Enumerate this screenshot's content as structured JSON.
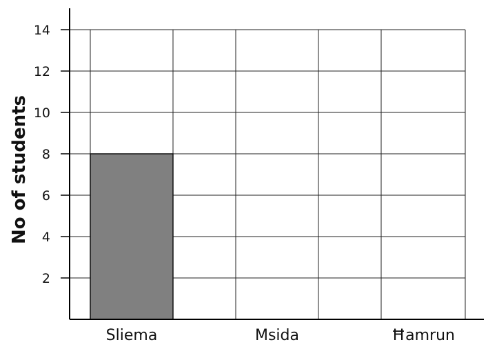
{
  "chart_data": {
    "type": "bar",
    "ylabel": "No of students",
    "xlabel": "",
    "title": "",
    "categories": [
      "Sliema",
      "Msida",
      "Ħamrun"
    ],
    "values": [
      8,
      null,
      null
    ],
    "ylim": [
      0,
      14
    ],
    "yticks": [
      2,
      4,
      6,
      8,
      10,
      12,
      14
    ],
    "grid": true,
    "bar_color": "#808080"
  }
}
